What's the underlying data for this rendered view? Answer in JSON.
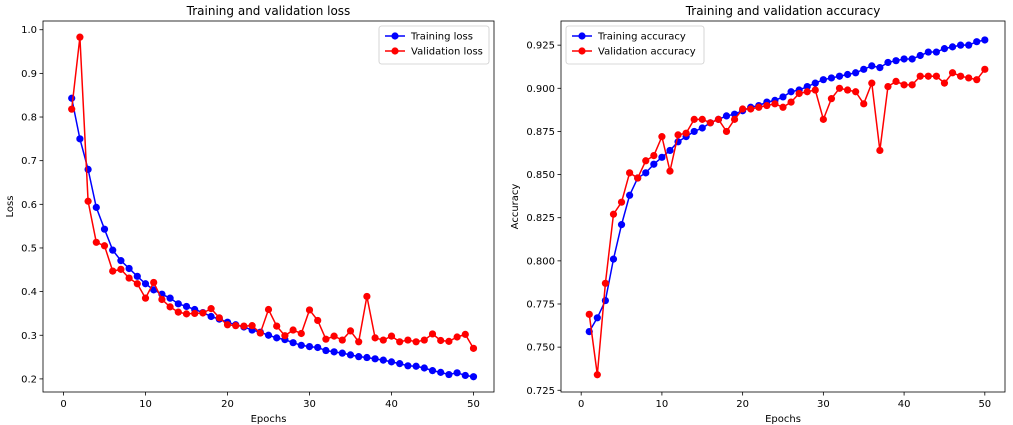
{
  "chart_data": [
    {
      "type": "line",
      "title": "Training and validation loss",
      "xlabel": "Epochs",
      "ylabel": "Loss",
      "xlim": [
        -2.5,
        52.5
      ],
      "ylim": [
        0.17,
        1.02
      ],
      "xticks": [
        0,
        10,
        20,
        30,
        40,
        50
      ],
      "xtick_labels": [
        "0",
        "10",
        "20",
        "30",
        "40",
        "50"
      ],
      "yticks": [
        0.2,
        0.3,
        0.4,
        0.5,
        0.6,
        0.7,
        0.8,
        0.9,
        1.0
      ],
      "ytick_labels": [
        "0.2",
        "0.3",
        "0.4",
        "0.5",
        "0.6",
        "0.7",
        "0.8",
        "0.9",
        "1.0"
      ],
      "legend_placement": "top-right",
      "grid": false,
      "x": [
        1,
        2,
        3,
        4,
        5,
        6,
        7,
        8,
        9,
        10,
        11,
        12,
        13,
        14,
        15,
        16,
        17,
        18,
        19,
        20,
        21,
        22,
        23,
        24,
        25,
        26,
        27,
        28,
        29,
        30,
        31,
        32,
        33,
        34,
        35,
        36,
        37,
        38,
        39,
        40,
        41,
        42,
        43,
        44,
        45,
        46,
        47,
        48,
        49,
        50
      ],
      "series": [
        {
          "name": "Training loss",
          "color": "#0000ff",
          "values": [
            0.843,
            0.75,
            0.68,
            0.593,
            0.543,
            0.495,
            0.471,
            0.453,
            0.435,
            0.418,
            0.404,
            0.394,
            0.385,
            0.372,
            0.366,
            0.359,
            0.352,
            0.343,
            0.337,
            0.33,
            0.324,
            0.319,
            0.312,
            0.307,
            0.3,
            0.294,
            0.29,
            0.283,
            0.277,
            0.274,
            0.272,
            0.265,
            0.262,
            0.259,
            0.255,
            0.251,
            0.249,
            0.246,
            0.243,
            0.239,
            0.235,
            0.23,
            0.229,
            0.225,
            0.219,
            0.215,
            0.21,
            0.214,
            0.208,
            0.205
          ]
        },
        {
          "name": "Validation loss",
          "color": "#ff0000",
          "values": [
            0.818,
            0.983,
            0.607,
            0.513,
            0.505,
            0.447,
            0.451,
            0.431,
            0.418,
            0.385,
            0.421,
            0.382,
            0.365,
            0.353,
            0.349,
            0.35,
            0.351,
            0.361,
            0.34,
            0.324,
            0.322,
            0.321,
            0.322,
            0.305,
            0.359,
            0.321,
            0.299,
            0.312,
            0.304,
            0.358,
            0.334,
            0.291,
            0.298,
            0.289,
            0.31,
            0.285,
            0.389,
            0.294,
            0.289,
            0.298,
            0.285,
            0.289,
            0.285,
            0.289,
            0.303,
            0.288,
            0.286,
            0.296,
            0.302,
            0.27
          ]
        }
      ]
    },
    {
      "type": "line",
      "title": "Training and validation accuracy",
      "xlabel": "Epochs",
      "ylabel": "Accuracy",
      "xlim": [
        -2.5,
        52.5
      ],
      "ylim": [
        0.724,
        0.939
      ],
      "xticks": [
        0,
        10,
        20,
        30,
        40,
        50
      ],
      "xtick_labels": [
        "0",
        "10",
        "20",
        "30",
        "40",
        "50"
      ],
      "yticks": [
        0.725,
        0.75,
        0.775,
        0.8,
        0.825,
        0.85,
        0.875,
        0.9,
        0.925
      ],
      "ytick_labels": [
        "0.725",
        "0.750",
        "0.775",
        "0.800",
        "0.825",
        "0.850",
        "0.875",
        "0.900",
        "0.925"
      ],
      "legend_placement": "top-left",
      "grid": false,
      "x": [
        1,
        2,
        3,
        4,
        5,
        6,
        7,
        8,
        9,
        10,
        11,
        12,
        13,
        14,
        15,
        16,
        17,
        18,
        19,
        20,
        21,
        22,
        23,
        24,
        25,
        26,
        27,
        28,
        29,
        30,
        31,
        32,
        33,
        34,
        35,
        36,
        37,
        38,
        39,
        40,
        41,
        42,
        43,
        44,
        45,
        46,
        47,
        48,
        49,
        50
      ],
      "series": [
        {
          "name": "Training accuracy",
          "color": "#0000ff",
          "values": [
            0.759,
            0.767,
            0.777,
            0.801,
            0.821,
            0.838,
            0.848,
            0.851,
            0.856,
            0.86,
            0.864,
            0.869,
            0.872,
            0.875,
            0.877,
            0.88,
            0.882,
            0.884,
            0.885,
            0.887,
            0.889,
            0.89,
            0.892,
            0.893,
            0.895,
            0.898,
            0.899,
            0.901,
            0.903,
            0.905,
            0.906,
            0.907,
            0.908,
            0.909,
            0.911,
            0.913,
            0.912,
            0.915,
            0.916,
            0.917,
            0.917,
            0.919,
            0.921,
            0.921,
            0.923,
            0.924,
            0.925,
            0.925,
            0.927,
            0.928
          ]
        },
        {
          "name": "Validation accuracy",
          "color": "#ff0000",
          "values": [
            0.769,
            0.734,
            0.787,
            0.827,
            0.834,
            0.851,
            0.848,
            0.858,
            0.861,
            0.872,
            0.852,
            0.873,
            0.874,
            0.882,
            0.882,
            0.88,
            0.882,
            0.875,
            0.882,
            0.888,
            0.888,
            0.889,
            0.89,
            0.891,
            0.889,
            0.892,
            0.897,
            0.898,
            0.899,
            0.882,
            0.894,
            0.9,
            0.899,
            0.898,
            0.891,
            0.903,
            0.864,
            0.901,
            0.904,
            0.902,
            0.902,
            0.907,
            0.907,
            0.907,
            0.903,
            0.909,
            0.907,
            0.906,
            0.905,
            0.911
          ]
        }
      ]
    }
  ]
}
